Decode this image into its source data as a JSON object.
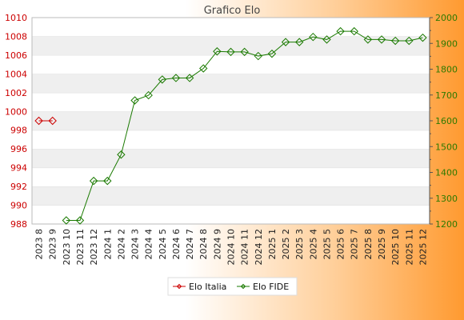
{
  "chart_data": {
    "type": "line",
    "title": "Grafico Elo",
    "grid": "horizontal alternating bands",
    "legend_placement": "bottom",
    "categories": [
      "2023 8",
      "2023 9",
      "2023 10",
      "2023 11",
      "2023 12",
      "2024 1",
      "2024 2",
      "2024 3",
      "2024 4",
      "2024 5",
      "2024 6",
      "2024 7",
      "2024 8",
      "2024 9",
      "2024 10",
      "2024 11",
      "2024 12",
      "2025 1",
      "2025 2",
      "2025 3",
      "2025 4",
      "2025 5",
      "2025 6",
      "2025 7",
      "2025 8",
      "2025 9",
      "2025 10",
      "2025 11",
      "2025 12"
    ],
    "y_left": {
      "min": 988,
      "max": 1010,
      "ticks": [
        988,
        990,
        992,
        994,
        996,
        998,
        1000,
        1002,
        1004,
        1006,
        1008,
        1010
      ],
      "color": "#cc0000"
    },
    "y_right": {
      "min": 1200,
      "max": 2000,
      "ticks": [
        1200,
        1300,
        1400,
        1500,
        1600,
        1700,
        1800,
        1900,
        2000
      ],
      "color": "#2e7a00"
    },
    "series": [
      {
        "name": "Elo Italia",
        "axis": "left",
        "color": "#cc0000",
        "values": [
          999,
          999,
          null,
          null,
          null,
          null,
          null,
          null,
          null,
          null,
          null,
          null,
          null,
          null,
          null,
          null,
          null,
          null,
          null,
          null,
          null,
          null,
          null,
          null,
          null,
          null,
          null,
          null,
          null
        ]
      },
      {
        "name": "Elo FIDE",
        "axis": "right",
        "color": "#1a7a00",
        "values": [
          null,
          null,
          1214,
          1214,
          1367,
          1367,
          1469,
          1679,
          1699,
          1760,
          1766,
          1766,
          1803,
          1869,
          1867,
          1867,
          1851,
          1860,
          1905,
          1905,
          1925,
          1915,
          1947,
          1947,
          1915,
          1915,
          1910,
          1910,
          1922
        ]
      }
    ]
  }
}
